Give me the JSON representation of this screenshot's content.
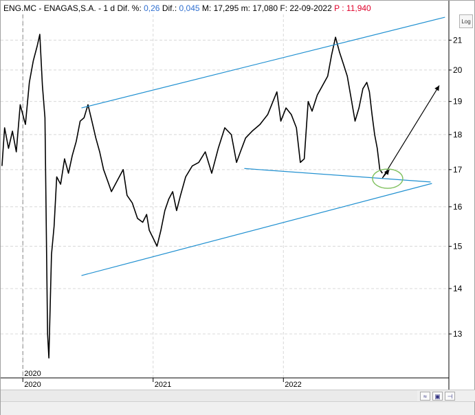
{
  "header": {
    "symbol": "ENG.MC",
    "sep1": "-",
    "name": "ENAGAS,S.A.",
    "sep2": "-",
    "period": "1 d",
    "dif_pct_label": "Dif. %:",
    "dif_pct_value": "0,26",
    "dif_label": "Dif.:",
    "dif_value": "0,045",
    "max_label": "M:",
    "max_value": "17,295",
    "min_label": "m:",
    "min_value": "17,080",
    "date_label": "F:",
    "date_value": "22-09-2022",
    "p_label": "P :",
    "p_value": "11,940"
  },
  "log_button": "Log",
  "colors": {
    "price": "#000000",
    "channel": "#1e8fd0",
    "arrow": "#000000",
    "ellipse": "#7cbf5a",
    "accent_blue": "#3070d0",
    "accent_red": "#e0002a"
  },
  "toolbar_icons": [
    "chart-toggle-icon",
    "save-icon",
    "pin-icon"
  ],
  "chart_data": {
    "type": "line",
    "title": "",
    "xlabel": "",
    "ylabel": "",
    "scale": "log",
    "ylim": [
      12.1,
      21.9
    ],
    "y_ticks": [
      13,
      14,
      15,
      16,
      17,
      18,
      19,
      20,
      21
    ],
    "x_ticks": [
      {
        "label": "2020",
        "x": 2020.0
      },
      {
        "label": "2021",
        "x": 2021.0
      },
      {
        "label": "2022",
        "x": 2022.0
      }
    ],
    "xlim": [
      2019.83,
      2023.27
    ],
    "cursor_label": "2020",
    "series": [
      {
        "values": [
          [
            2019.84,
            17.1
          ],
          [
            2019.86,
            18.2
          ],
          [
            2019.89,
            17.6
          ],
          [
            2019.92,
            18.1
          ],
          [
            2019.95,
            17.5
          ],
          [
            2019.98,
            18.9
          ],
          [
            2020.02,
            18.3
          ],
          [
            2020.05,
            19.6
          ],
          [
            2020.08,
            20.3
          ],
          [
            2020.11,
            20.8
          ],
          [
            2020.13,
            21.2
          ],
          [
            2020.15,
            19.5
          ],
          [
            2020.17,
            18.5
          ],
          [
            2020.19,
            13.0
          ],
          [
            2020.2,
            12.5
          ],
          [
            2020.22,
            14.8
          ],
          [
            2020.24,
            15.5
          ],
          [
            2020.26,
            16.8
          ],
          [
            2020.29,
            16.6
          ],
          [
            2020.32,
            17.3
          ],
          [
            2020.35,
            16.9
          ],
          [
            2020.38,
            17.4
          ],
          [
            2020.41,
            17.8
          ],
          [
            2020.44,
            18.4
          ],
          [
            2020.47,
            18.5
          ],
          [
            2020.5,
            18.9
          ],
          [
            2020.53,
            18.4
          ],
          [
            2020.56,
            17.9
          ],
          [
            2020.59,
            17.5
          ],
          [
            2020.62,
            17.0
          ],
          [
            2020.65,
            16.7
          ],
          [
            2020.68,
            16.4
          ],
          [
            2020.71,
            16.6
          ],
          [
            2020.74,
            16.8
          ],
          [
            2020.77,
            17.0
          ],
          [
            2020.8,
            16.3
          ],
          [
            2020.84,
            16.1
          ],
          [
            2020.88,
            15.7
          ],
          [
            2020.92,
            15.6
          ],
          [
            2020.95,
            15.8
          ],
          [
            2020.97,
            15.4
          ],
          [
            2021.0,
            15.2
          ],
          [
            2021.03,
            15.0
          ],
          [
            2021.06,
            15.4
          ],
          [
            2021.09,
            15.9
          ],
          [
            2021.12,
            16.2
          ],
          [
            2021.15,
            16.4
          ],
          [
            2021.18,
            15.9
          ],
          [
            2021.21,
            16.3
          ],
          [
            2021.25,
            16.8
          ],
          [
            2021.3,
            17.1
          ],
          [
            2021.35,
            17.2
          ],
          [
            2021.4,
            17.5
          ],
          [
            2021.45,
            16.9
          ],
          [
            2021.5,
            17.6
          ],
          [
            2021.55,
            18.2
          ],
          [
            2021.6,
            18.0
          ],
          [
            2021.64,
            17.2
          ],
          [
            2021.67,
            17.5
          ],
          [
            2021.71,
            17.9
          ],
          [
            2021.76,
            18.1
          ],
          [
            2021.82,
            18.3
          ],
          [
            2021.88,
            18.6
          ],
          [
            2021.92,
            19.0
          ],
          [
            2021.95,
            19.3
          ],
          [
            2021.98,
            18.4
          ],
          [
            2022.02,
            18.8
          ],
          [
            2022.06,
            18.6
          ],
          [
            2022.1,
            18.2
          ],
          [
            2022.13,
            17.2
          ],
          [
            2022.16,
            17.3
          ],
          [
            2022.19,
            19.0
          ],
          [
            2022.22,
            18.7
          ],
          [
            2022.26,
            19.2
          ],
          [
            2022.3,
            19.5
          ],
          [
            2022.34,
            19.8
          ],
          [
            2022.37,
            20.5
          ],
          [
            2022.4,
            21.1
          ],
          [
            2022.43,
            20.6
          ],
          [
            2022.46,
            20.2
          ],
          [
            2022.49,
            19.8
          ],
          [
            2022.52,
            19.1
          ],
          [
            2022.55,
            18.4
          ],
          [
            2022.58,
            18.8
          ],
          [
            2022.61,
            19.4
          ],
          [
            2022.64,
            19.6
          ],
          [
            2022.66,
            19.3
          ],
          [
            2022.68,
            18.6
          ],
          [
            2022.7,
            18.0
          ],
          [
            2022.72,
            17.6
          ],
          [
            2022.74,
            17.0
          ],
          [
            2022.76,
            16.9
          ]
        ]
      }
    ],
    "annotations": [
      {
        "type": "line",
        "from": [
          2020.45,
          18.8
        ],
        "to": [
          2023.24,
          21.8
        ],
        "role": "channel-upper"
      },
      {
        "type": "line",
        "from": [
          2020.45,
          14.3
        ],
        "to": [
          2023.14,
          16.62
        ],
        "role": "channel-lower"
      },
      {
        "type": "line",
        "from": [
          2021.7,
          17.03
        ],
        "to": [
          2023.13,
          16.66
        ],
        "role": "neckline"
      },
      {
        "type": "arrow",
        "from": [
          2022.76,
          16.77
        ],
        "to": [
          2023.29,
          19.5
        ],
        "role": "projection"
      },
      {
        "type": "ellipse",
        "center": [
          2022.8,
          16.75
        ],
        "role": "highlight"
      }
    ]
  }
}
